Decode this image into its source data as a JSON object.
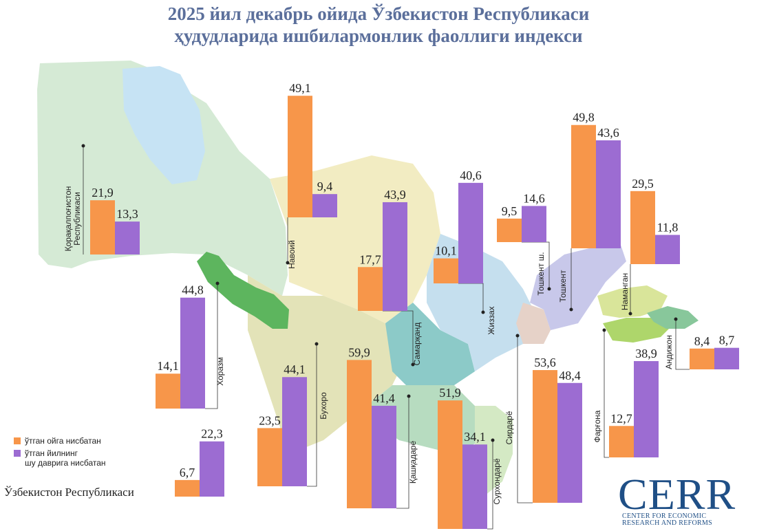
{
  "title": {
    "line1": "2025 йил декабрь ойида Ўзбекистон Республикаси",
    "line2": "ҳудудларида ишбилармонлик фаоллиги индекси"
  },
  "legend": {
    "items": [
      {
        "label": "ўтган ойга нисбатан",
        "color": "#f7964a"
      },
      {
        "label_lines": [
          "ўтган йилнинг",
          "шу даврига нисбатан"
        ],
        "color": "#9c6cd2"
      }
    ]
  },
  "national_label": "Ўзбекистон Республикаси",
  "logo": {
    "text": "CERR",
    "subtitle_lines": [
      "CENTER FOR ECONOMIC",
      "RESEARCH AND REFORMS"
    ]
  },
  "chart_data": {
    "type": "bar",
    "series": [
      {
        "name": "ўтган ойга нисбатан",
        "color": "#f7964a"
      },
      {
        "name": "ўтган йилнинг шу даврига нисбатан",
        "color": "#9c6cd2"
      }
    ],
    "regions": [
      {
        "label_lines": [
          "Қорақалпоғистон",
          "Республикаси"
        ],
        "values": [
          21.9,
          13.3
        ],
        "value_labels": [
          "21,9",
          "13,3"
        ]
      },
      {
        "label_lines": [
          "Навоий"
        ],
        "values": [
          49.1,
          9.4
        ],
        "value_labels": [
          "49,1",
          "9,4"
        ]
      },
      {
        "label_lines": [
          "Хоразм"
        ],
        "values": [
          14.1,
          44.8
        ],
        "value_labels": [
          "14,1",
          "44,8"
        ]
      },
      {
        "label_lines": [
          "Бухоро"
        ],
        "values": [
          23.5,
          44.1
        ],
        "value_labels": [
          "23,5",
          "44,1"
        ]
      },
      {
        "label_lines": [
          "Самарқанд"
        ],
        "values": [
          17.7,
          43.9
        ],
        "value_labels": [
          "17,7",
          "43,9"
        ]
      },
      {
        "label_lines": [
          "Қашқадарё"
        ],
        "values": [
          59.9,
          41.4
        ],
        "value_labels": [
          "59,9",
          "41,4"
        ]
      },
      {
        "label_lines": [
          "Сурхондарё"
        ],
        "values": [
          51.9,
          34.1
        ],
        "value_labels": [
          "51,9",
          "34,1"
        ]
      },
      {
        "label_lines": [
          "Жиззах"
        ],
        "values": [
          10.1,
          40.6
        ],
        "value_labels": [
          "10,1",
          "40,6"
        ]
      },
      {
        "label_lines": [
          "Сирдарё"
        ],
        "values": [
          53.6,
          48.4
        ],
        "value_labels": [
          "53,6",
          "48,4"
        ]
      },
      {
        "label_lines": [
          "Тошкент ш."
        ],
        "values": [
          9.5,
          14.6
        ],
        "value_labels": [
          "9,5",
          "14,6"
        ]
      },
      {
        "label_lines": [
          "Тошкент"
        ],
        "values": [
          49.8,
          43.6
        ],
        "value_labels": [
          "49,8",
          "43,6"
        ]
      },
      {
        "label_lines": [
          "Наманган"
        ],
        "values": [
          29.5,
          11.8
        ],
        "value_labels": [
          "29,5",
          "11,8"
        ]
      },
      {
        "label_lines": [
          "Фарғона"
        ],
        "values": [
          12.7,
          38.9
        ],
        "value_labels": [
          "12,7",
          "38,9"
        ]
      },
      {
        "label_lines": [
          "Андижон"
        ],
        "values": [
          8.4,
          8.7
        ],
        "value_labels": [
          "8,4",
          "8,7"
        ]
      }
    ],
    "national": {
      "label": "Ўзбекистон Республикаси",
      "values": [
        6.7,
        22.3
      ],
      "value_labels": [
        "6,7",
        "22,3"
      ]
    }
  }
}
